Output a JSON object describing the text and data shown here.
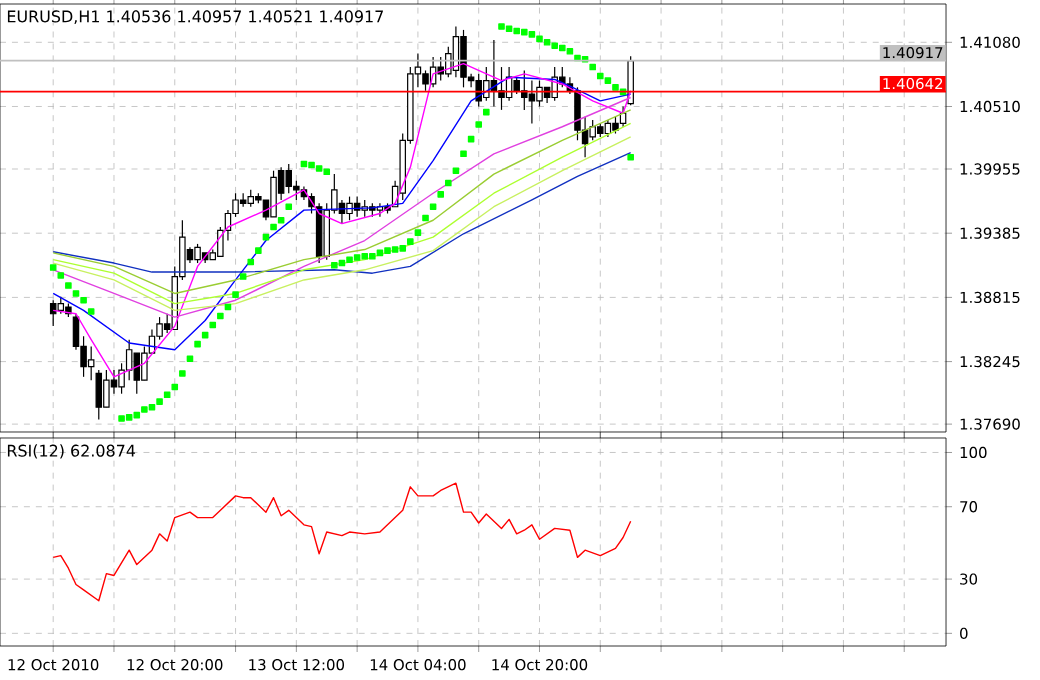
{
  "chart_data": [
    {
      "type": "candlestick",
      "title": "EURUSD,H1  1.40536 1.40957 1.40521 1.40917",
      "tick_labels": "y",
      "grid": true,
      "xlim": [
        "2010-10-11T21:00",
        "2010-10-17T01:30"
      ],
      "xticks": [
        {
          "value": "2010-10-12T04:00",
          "label": null
        },
        {
          "value": "2010-10-12T12:00",
          "label": null
        },
        {
          "value": "2010-10-12T20:00",
          "label": null
        },
        {
          "value": "2010-10-13T04:00",
          "label": null
        },
        {
          "value": "2010-10-13T12:00",
          "label": null
        },
        {
          "value": "2010-10-13T20:00",
          "label": null
        },
        {
          "value": "2010-10-14T04:00",
          "label": null
        },
        {
          "value": "2010-10-14T12:00",
          "label": null
        },
        {
          "value": "2010-10-14T20:00",
          "label": null
        },
        {
          "value": "2010-10-15T04:00",
          "label": null
        },
        {
          "value": "2010-10-15T12:00",
          "label": null
        },
        {
          "value": "2010-10-15T20:00",
          "label": null
        },
        {
          "value": "2010-10-16T04:00",
          "label": null
        },
        {
          "value": "2010-10-16T12:00",
          "label": null
        },
        {
          "value": "2010-10-16T20:00",
          "label": null
        }
      ],
      "x": [
        "2010-10-12T04:00",
        "2010-10-12T05:00",
        "2010-10-12T06:00",
        "2010-10-12T07:00",
        "2010-10-12T08:00",
        "2010-10-12T09:00",
        "2010-10-12T10:00",
        "2010-10-12T11:00",
        "2010-10-12T12:00",
        "2010-10-12T13:00",
        "2010-10-12T14:00",
        "2010-10-12T15:00",
        "2010-10-12T16:00",
        "2010-10-12T17:00",
        "2010-10-12T18:00",
        "2010-10-12T19:00",
        "2010-10-12T20:00",
        "2010-10-12T21:00",
        "2010-10-12T22:00",
        "2010-10-12T23:00",
        "2010-10-13T00:00",
        "2010-10-13T01:00",
        "2010-10-13T02:00",
        "2010-10-13T03:00",
        "2010-10-13T04:00",
        "2010-10-13T05:00",
        "2010-10-13T06:00",
        "2010-10-13T07:00",
        "2010-10-13T08:00",
        "2010-10-13T09:00",
        "2010-10-13T10:00",
        "2010-10-13T11:00",
        "2010-10-13T12:00",
        "2010-10-13T13:00",
        "2010-10-13T14:00",
        "2010-10-13T15:00",
        "2010-10-13T16:00",
        "2010-10-13T17:00",
        "2010-10-13T18:00",
        "2010-10-13T19:00",
        "2010-10-13T20:00",
        "2010-10-13T21:00",
        "2010-10-13T22:00",
        "2010-10-13T23:00",
        "2010-10-14T00:00",
        "2010-10-14T01:00",
        "2010-10-14T02:00",
        "2010-10-14T03:00",
        "2010-10-14T04:00",
        "2010-10-14T05:00",
        "2010-10-14T06:00",
        "2010-10-14T07:00",
        "2010-10-14T08:00",
        "2010-10-14T09:00",
        "2010-10-14T10:00",
        "2010-10-14T11:00",
        "2010-10-14T12:00",
        "2010-10-14T13:00",
        "2010-10-14T14:00",
        "2010-10-14T15:00",
        "2010-10-14T16:00",
        "2010-10-14T17:00",
        "2010-10-14T18:00",
        "2010-10-14T19:00",
        "2010-10-14T20:00",
        "2010-10-14T21:00",
        "2010-10-14T22:00",
        "2010-10-14T23:00",
        "2010-10-15T00:00",
        "2010-10-15T01:00",
        "2010-10-15T02:00",
        "2010-10-15T03:00",
        "2010-10-15T04:00",
        "2010-10-15T05:00",
        "2010-10-15T06:00",
        "2010-10-15T07:00",
        "2010-10-15T08:00"
      ],
      "ohlc": [
        [
          1.3876,
          1.3879,
          1.3856,
          1.3867
        ],
        [
          1.387,
          1.3882,
          1.3867,
          1.3876
        ],
        [
          1.3873,
          1.3876,
          1.3864,
          1.3867
        ],
        [
          1.3864,
          1.3867,
          1.3835,
          1.3838
        ],
        [
          1.3838,
          1.3847,
          1.3811,
          1.382
        ],
        [
          1.382,
          1.3838,
          1.3808,
          1.3826
        ],
        [
          1.3814,
          1.3817,
          1.3773,
          1.3784
        ],
        [
          1.3784,
          1.3817,
          1.3784,
          1.3808
        ],
        [
          1.3808,
          1.3817,
          1.3796,
          1.3802
        ],
        [
          1.3802,
          1.3823,
          1.3796,
          1.3817
        ],
        [
          1.3817,
          1.3844,
          1.3808,
          1.3835
        ],
        [
          1.3832,
          1.3832,
          1.3796,
          1.3808
        ],
        [
          1.3808,
          1.3838,
          1.3808,
          1.3832
        ],
        [
          1.3832,
          1.3853,
          1.3832,
          1.3847
        ],
        [
          1.3847,
          1.3864,
          1.3844,
          1.3858
        ],
        [
          1.3858,
          1.3867,
          1.385,
          1.3853
        ],
        [
          1.3853,
          1.3909,
          1.3853,
          1.39
        ],
        [
          1.39,
          1.395,
          1.3897,
          1.3935
        ],
        [
          1.3924,
          1.3926,
          1.3912,
          1.3915
        ],
        [
          1.3915,
          1.3929,
          1.3912,
          1.3926
        ],
        [
          1.3921,
          1.3921,
          1.3912,
          1.3915
        ],
        [
          1.3915,
          1.3924,
          1.3915,
          1.3921
        ],
        [
          1.3918,
          1.3944,
          1.3918,
          1.3941
        ],
        [
          1.3941,
          1.3959,
          1.3932,
          1.3956
        ],
        [
          1.3956,
          1.3974,
          1.3953,
          1.3968
        ],
        [
          1.3968,
          1.3974,
          1.3962,
          1.3965
        ],
        [
          1.3965,
          1.3977,
          1.3962,
          1.3971
        ],
        [
          1.3971,
          1.3974,
          1.3965,
          1.3968
        ],
        [
          1.3968,
          1.3968,
          1.395,
          1.3953
        ],
        [
          1.3953,
          1.3994,
          1.3953,
          1.3988
        ],
        [
          1.3994,
          1.3997,
          1.3968,
          1.3974
        ],
        [
          1.3994,
          1.4,
          1.3974,
          1.398
        ],
        [
          1.398,
          1.3985,
          1.3968,
          1.3977
        ],
        [
          1.3977,
          1.398,
          1.3968,
          1.3971
        ],
        [
          1.3971,
          1.3974,
          1.3956,
          1.3962
        ],
        [
          1.3962,
          1.3965,
          1.3912,
          1.3918
        ],
        [
          1.3918,
          1.3965,
          1.3915,
          1.3959
        ],
        [
          1.3959,
          1.3991,
          1.3956,
          1.3977
        ],
        [
          1.3965,
          1.3968,
          1.3947,
          1.3956
        ],
        [
          1.3956,
          1.3971,
          1.395,
          1.3965
        ],
        [
          1.3965,
          1.3971,
          1.3953,
          1.3959
        ],
        [
          1.3959,
          1.3968,
          1.3953,
          1.3962
        ],
        [
          1.3962,
          1.3965,
          1.3953,
          1.3959
        ],
        [
          1.3959,
          1.3965,
          1.3953,
          1.3962
        ],
        [
          1.3962,
          1.3965,
          1.3956,
          1.3959
        ],
        [
          1.3962,
          1.3985,
          1.3962,
          1.398
        ],
        [
          1.3974,
          1.4027,
          1.3968,
          1.4021
        ],
        [
          1.4021,
          1.4086,
          1.4018,
          1.408
        ],
        [
          1.408,
          1.4098,
          1.4068,
          1.4086
        ],
        [
          1.408,
          1.4083,
          1.4065,
          1.4071
        ],
        [
          1.4071,
          1.4095,
          1.4068,
          1.4086
        ],
        [
          1.4086,
          1.4095,
          1.4074,
          1.408
        ],
        [
          1.408,
          1.4104,
          1.4077,
          1.4098
        ],
        [
          1.4083,
          1.4122,
          1.4077,
          1.4113
        ],
        [
          1.4113,
          1.4119,
          1.4068,
          1.4077
        ],
        [
          1.4077,
          1.408,
          1.4068,
          1.4074
        ],
        [
          1.4074,
          1.408,
          1.4051,
          1.4056
        ],
        [
          1.4059,
          1.4086,
          1.4056,
          1.4074
        ],
        [
          1.4074,
          1.411,
          1.4051,
          1.4065
        ],
        [
          1.4065,
          1.4086,
          1.4048,
          1.4059
        ],
        [
          1.4059,
          1.4086,
          1.4056,
          1.4077
        ],
        [
          1.4074,
          1.4077,
          1.4062,
          1.4065
        ],
        [
          1.4065,
          1.4083,
          1.4048,
          1.4059
        ],
        [
          1.4062,
          1.4074,
          1.4036,
          1.4056
        ],
        [
          1.4056,
          1.4074,
          1.4051,
          1.4068
        ],
        [
          1.4068,
          1.4068,
          1.4054,
          1.4059
        ],
        [
          1.4059,
          1.4086,
          1.4056,
          1.4077
        ],
        [
          1.4077,
          1.4086,
          1.4068,
          1.4071
        ],
        [
          1.4071,
          1.4077,
          1.4062,
          1.4065
        ],
        [
          1.4065,
          1.4068,
          1.4021,
          1.403
        ],
        [
          1.403,
          1.4042,
          1.4006,
          1.4018
        ],
        [
          1.4024,
          1.4039,
          1.4021,
          1.4033
        ],
        [
          1.4033,
          1.4036,
          1.4024,
          1.4027
        ],
        [
          1.4027,
          1.4039,
          1.4024,
          1.4036
        ],
        [
          1.4036,
          1.4042,
          1.4027,
          1.403
        ],
        [
          1.4036,
          1.4051,
          1.4033,
          1.4045
        ],
        [
          1.40536,
          1.40957,
          1.40521,
          1.40917
        ]
      ],
      "series": [
        {
          "type": "line",
          "color": "#1030c0",
          "x": [
            "2010-10-12T04:00",
            "2010-10-12T12:00",
            "2010-10-12T17:00",
            "2010-10-13T04:00",
            "2010-10-13T17:00",
            "2010-10-13T22:00",
            "2010-10-14T03:00",
            "2010-10-14T10:00",
            "2010-10-14T19:00",
            "2010-10-15T01:00",
            "2010-10-15T08:00"
          ],
          "values": [
            1.3922,
            1.3912,
            1.3904,
            1.3904,
            1.3906,
            1.3903,
            1.3909,
            1.3938,
            1.3968,
            1.3989,
            1.401
          ]
        },
        {
          "type": "line",
          "color": "#0000ff",
          "x": [
            "2010-10-12T04:00",
            "2010-10-12T08:00",
            "2010-10-12T14:00",
            "2010-10-12T20:00",
            "2010-10-13T00:00",
            "2010-10-13T04:00",
            "2010-10-13T08:00",
            "2010-10-13T13:00",
            "2010-10-13T22:00",
            "2010-10-14T02:00",
            "2010-10-14T06:00",
            "2010-10-14T11:00",
            "2010-10-14T16:00",
            "2010-10-14T22:00",
            "2010-10-15T00:00",
            "2010-10-15T04:00",
            "2010-10-15T08:00"
          ],
          "values": [
            1.3885,
            1.387,
            1.3841,
            1.3835,
            1.3861,
            1.3897,
            1.3932,
            1.3959,
            1.3961,
            1.3965,
            1.4003,
            1.4056,
            1.4077,
            1.4075,
            1.4069,
            1.4056,
            1.4062
          ]
        },
        {
          "type": "line",
          "color": "#ff00ff",
          "x": [
            "2010-10-12T04:00",
            "2010-10-12T07:00",
            "2010-10-12T09:00",
            "2010-10-12T12:00",
            "2010-10-12T16:00",
            "2010-10-12T20:00",
            "2010-10-12T23:00",
            "2010-10-13T03:00",
            "2010-10-13T08:00",
            "2010-10-13T13:00",
            "2010-10-13T15:00",
            "2010-10-13T18:00",
            "2010-10-13T23:00",
            "2010-10-14T01:00",
            "2010-10-14T03:00",
            "2010-10-14T06:00",
            "2010-10-14T10:00",
            "2010-10-14T15:00",
            "2010-10-14T18:00",
            "2010-10-14T23:00",
            "2010-10-15T03:00",
            "2010-10-15T07:00",
            "2010-10-15T08:00"
          ],
          "values": [
            1.387,
            1.3867,
            1.3844,
            1.3811,
            1.3823,
            1.3856,
            1.3909,
            1.3944,
            1.3959,
            1.3977,
            1.3956,
            1.3947,
            1.3956,
            1.3965,
            1.3997,
            1.408,
            1.4089,
            1.4074,
            1.408,
            1.4071,
            1.4056,
            1.4045,
            1.4065
          ]
        },
        {
          "type": "line",
          "color": "#e040e0",
          "x": [
            "2010-10-12T04:00",
            "2010-10-12T12:00",
            "2010-10-12T20:00",
            "2010-10-13T04:00",
            "2010-10-13T13:00",
            "2010-10-13T21:00",
            "2010-10-14T06:00",
            "2010-10-14T14:00",
            "2010-10-14T23:00",
            "2010-10-15T08:00"
          ],
          "values": [
            1.3906,
            1.3885,
            1.3864,
            1.3879,
            1.3909,
            1.3932,
            1.3974,
            1.4009,
            1.4033,
            1.4059
          ]
        },
        {
          "type": "line",
          "color": "#9acd32",
          "x": [
            "2010-10-12T04:00",
            "2010-10-12T12:00",
            "2010-10-12T20:00",
            "2010-10-13T04:00",
            "2010-10-13T13:00",
            "2010-10-13T21:00",
            "2010-10-14T06:00",
            "2010-10-14T14:00",
            "2010-10-14T23:00",
            "2010-10-15T08:00"
          ],
          "values": [
            1.3921,
            1.3909,
            1.3885,
            1.3897,
            1.3915,
            1.3924,
            1.395,
            1.3991,
            1.4021,
            1.4048
          ]
        },
        {
          "type": "line",
          "color": "#adff2f",
          "x": [
            "2010-10-12T04:00",
            "2010-10-12T12:00",
            "2010-10-12T20:00",
            "2010-10-13T04:00",
            "2010-10-13T13:00",
            "2010-10-13T21:00",
            "2010-10-14T06:00",
            "2010-10-14T14:00",
            "2010-10-14T23:00",
            "2010-10-15T08:00"
          ],
          "values": [
            1.3915,
            1.3903,
            1.3876,
            1.3885,
            1.3906,
            1.3915,
            1.3935,
            1.3974,
            1.4006,
            1.4036
          ]
        },
        {
          "type": "line",
          "color": "#c8f060",
          "x": [
            "2010-10-12T04:00",
            "2010-10-12T12:00",
            "2010-10-12T20:00",
            "2010-10-13T04:00",
            "2010-10-13T13:00",
            "2010-10-13T21:00",
            "2010-10-14T06:00",
            "2010-10-14T14:00",
            "2010-10-14T23:00",
            "2010-10-15T08:00"
          ],
          "values": [
            1.3912,
            1.3897,
            1.387,
            1.3876,
            1.3897,
            1.3906,
            1.3923,
            1.3962,
            1.3994,
            1.4024
          ]
        },
        {
          "type": "scatter",
          "color": "#00ff00",
          "marker": "square",
          "x": [
            "2010-10-12T04:00",
            "2010-10-12T05:00",
            "2010-10-12T06:00",
            "2010-10-12T07:00",
            "2010-10-12T08:00",
            "2010-10-12T09:00",
            "2010-10-12T13:00",
            "2010-10-12T14:00",
            "2010-10-12T15:00",
            "2010-10-12T16:00",
            "2010-10-12T17:00",
            "2010-10-12T18:00",
            "2010-10-12T19:00",
            "2010-10-12T20:00",
            "2010-10-12T21:00",
            "2010-10-12T22:00",
            "2010-10-12T23:00",
            "2010-10-13T00:00",
            "2010-10-13T01:00",
            "2010-10-13T02:00",
            "2010-10-13T03:00",
            "2010-10-13T04:00",
            "2010-10-13T05:00",
            "2010-10-13T06:00",
            "2010-10-13T07:00",
            "2010-10-13T08:00",
            "2010-10-13T09:00",
            "2010-10-13T10:00",
            "2010-10-13T11:00",
            "2010-10-13T13:00",
            "2010-10-13T14:00",
            "2010-10-13T15:00",
            "2010-10-13T16:00",
            "2010-10-13T17:00",
            "2010-10-13T18:00",
            "2010-10-13T19:00",
            "2010-10-13T20:00",
            "2010-10-13T21:00",
            "2010-10-13T22:00",
            "2010-10-13T23:00",
            "2010-10-14T00:00",
            "2010-10-14T01:00",
            "2010-10-14T02:00",
            "2010-10-14T03:00",
            "2010-10-14T04:00",
            "2010-10-14T05:00",
            "2010-10-14T06:00",
            "2010-10-14T07:00",
            "2010-10-14T08:00",
            "2010-10-14T09:00",
            "2010-10-14T10:00",
            "2010-10-14T11:00",
            "2010-10-14T12:00",
            "2010-10-14T13:00",
            "2010-10-14T15:00",
            "2010-10-14T16:00",
            "2010-10-14T17:00",
            "2010-10-14T18:00",
            "2010-10-14T19:00",
            "2010-10-14T20:00",
            "2010-10-14T21:00",
            "2010-10-14T22:00",
            "2010-10-14T23:00",
            "2010-10-15T00:00",
            "2010-10-15T01:00",
            "2010-10-15T02:00",
            "2010-10-15T03:00",
            "2010-10-15T04:00",
            "2010-10-15T05:00",
            "2010-10-15T06:00",
            "2010-10-15T07:00",
            "2010-10-15T08:00"
          ],
          "values": [
            1.3908,
            1.3901,
            1.3892,
            1.3885,
            1.3879,
            1.3869,
            1.3774,
            1.3775,
            1.3777,
            1.3782,
            1.3784,
            1.3789,
            1.3795,
            1.3802,
            1.3814,
            1.3827,
            1.384,
            1.3848,
            1.3857,
            1.3865,
            1.3873,
            1.3884,
            1.39,
            1.3913,
            1.3923,
            1.3935,
            1.3944,
            1.395,
            1.3962,
            1.4,
            1.3999,
            1.3996,
            1.3993,
            1.391,
            1.3912,
            1.3915,
            1.3917,
            1.3918,
            1.3918,
            1.3921,
            1.3923,
            1.3924,
            1.3925,
            1.3931,
            1.3939,
            1.3952,
            1.3962,
            1.3973,
            1.3983,
            1.3994,
            1.4009,
            1.4022,
            1.4035,
            1.4046,
            1.4122,
            1.412,
            1.4118,
            1.4117,
            1.4115,
            1.4111,
            1.4108,
            1.4105,
            1.4103,
            1.41,
            1.4094,
            1.4093,
            1.4086,
            1.4078,
            1.4074,
            1.4068,
            1.4064,
            1.4006
          ]
        }
      ],
      "ylim": [
        1.3762,
        1.4142
      ],
      "yticks": [
        {
          "value": 1.4108,
          "label": "1.41080"
        },
        {
          "value": 1.4051,
          "label": "1.40510"
        },
        1.39955,
        1.39385,
        1.38815,
        1.38245,
        {
          "value": 1.3769,
          "label": "1.37690"
        }
      ],
      "ref_lines": [
        {
          "axis": "y",
          "value": 1.40917,
          "label": "1.40917",
          "color": "#c0c0c0"
        },
        {
          "axis": "y",
          "value": 1.40642,
          "label": "1.40642",
          "color": "#ff0000"
        }
      ]
    },
    {
      "type": "line",
      "title": "RSI(12) 62.0874",
      "grid": true,
      "xlim": [
        "2010-10-11T21:00",
        "2010-10-17T01:30"
      ],
      "xticks": [
        {
          "value": "2010-10-12T04:00",
          "label": "12 Oct 2010"
        },
        {
          "value": "2010-10-12T12:00",
          "label": null
        },
        {
          "value": "2010-10-12T20:00",
          "label": "12 Oct 20:00"
        },
        {
          "value": "2010-10-13T04:00",
          "label": null
        },
        {
          "value": "2010-10-13T12:00",
          "label": "13 Oct 12:00"
        },
        {
          "value": "2010-10-13T20:00",
          "label": null
        },
        {
          "value": "2010-10-14T04:00",
          "label": "14 Oct 04:00"
        },
        {
          "value": "2010-10-14T12:00",
          "label": null
        },
        {
          "value": "2010-10-14T20:00",
          "label": "14 Oct 20:00"
        },
        {
          "value": "2010-10-15T04:00",
          "label": null
        },
        {
          "value": "2010-10-15T12:00",
          "label": null
        },
        {
          "value": "2010-10-15T20:00",
          "label": null
        },
        {
          "value": "2010-10-16T04:00",
          "label": null
        },
        {
          "value": "2010-10-16T12:00",
          "label": null
        },
        {
          "value": "2010-10-16T20:00",
          "label": null
        }
      ],
      "series": [
        {
          "color": "#ff0000",
          "x": [
            "2010-10-12T04:00",
            "2010-10-12T05:00",
            "2010-10-12T06:00",
            "2010-10-12T07:00",
            "2010-10-12T08:00",
            "2010-10-12T10:00",
            "2010-10-12T11:00",
            "2010-10-12T12:00",
            "2010-10-12T14:00",
            "2010-10-12T15:00",
            "2010-10-12T17:00",
            "2010-10-12T18:00",
            "2010-10-12T19:00",
            "2010-10-12T20:00",
            "2010-10-12T22:00",
            "2010-10-12T23:00",
            "2010-10-13T01:00",
            "2010-10-13T04:00",
            "2010-10-13T05:00",
            "2010-10-13T06:00",
            "2010-10-13T08:00",
            "2010-10-13T09:00",
            "2010-10-13T10:00",
            "2010-10-13T11:00",
            "2010-10-13T13:00",
            "2010-10-13T14:00",
            "2010-10-13T15:00",
            "2010-10-13T16:00",
            "2010-10-13T18:00",
            "2010-10-13T19:00",
            "2010-10-13T21:00",
            "2010-10-13T23:00",
            "2010-10-14T00:00",
            "2010-10-14T02:00",
            "2010-10-14T03:00",
            "2010-10-14T04:00",
            "2010-10-14T06:00",
            "2010-10-14T07:00",
            "2010-10-14T09:00",
            "2010-10-14T10:00",
            "2010-10-14T11:00",
            "2010-10-14T12:00",
            "2010-10-14T13:00",
            "2010-10-14T15:00",
            "2010-10-14T16:00",
            "2010-10-14T17:00",
            "2010-10-14T18:00",
            "2010-10-14T19:00",
            "2010-10-14T20:00",
            "2010-10-14T22:00",
            "2010-10-15T00:00",
            "2010-10-15T01:00",
            "2010-10-15T02:00",
            "2010-10-15T04:00",
            "2010-10-15T06:00",
            "2010-10-15T07:00",
            "2010-10-15T08:00"
          ],
          "values": [
            42,
            43,
            36,
            27,
            24,
            18,
            33,
            32,
            46,
            38,
            46,
            55,
            51,
            64,
            67,
            64,
            64,
            76,
            75,
            75,
            67,
            75,
            65,
            68,
            60,
            59,
            44,
            56,
            54,
            56,
            55,
            56,
            60,
            68,
            81,
            76,
            76,
            79,
            83,
            67,
            67,
            61,
            66,
            58,
            63,
            55,
            57,
            60,
            52,
            58,
            57,
            42,
            46,
            43,
            47,
            53,
            62
          ]
        }
      ],
      "ylim": [
        -7,
        108
      ],
      "yticks": [
        0,
        30,
        70,
        100
      ]
    }
  ]
}
